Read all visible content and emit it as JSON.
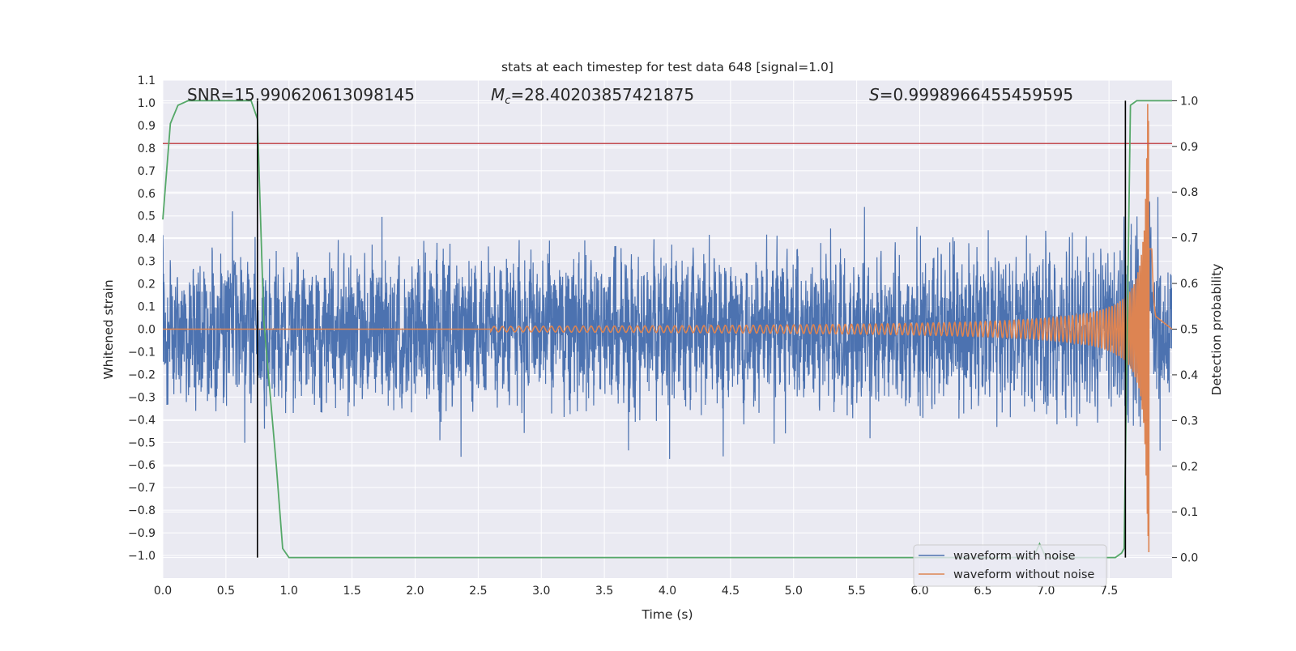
{
  "chart_data": {
    "type": "line",
    "title": "stats at each timestep for test data 648 [signal=1.0]",
    "xlabel": "Time (s)",
    "ylabel_left": "Whitened strain",
    "ylabel_right": "Detection probability",
    "xlim": [
      0.0,
      8.0
    ],
    "ylim_left": [
      -1.1,
      1.1
    ],
    "ylim_right": [
      -0.045,
      1.045
    ],
    "grid": true,
    "legend_position": "bottom-right",
    "x_ticks": [
      "0.0",
      "0.5",
      "1.0",
      "1.5",
      "2.0",
      "2.5",
      "3.0",
      "3.5",
      "4.0",
      "4.5",
      "5.0",
      "5.5",
      "6.0",
      "6.5",
      "7.0",
      "7.5"
    ],
    "x_tick_values": [
      0.0,
      0.5,
      1.0,
      1.5,
      2.0,
      2.5,
      3.0,
      3.5,
      4.0,
      4.5,
      5.0,
      5.5,
      6.0,
      6.5,
      7.0,
      7.5
    ],
    "y_left_ticks": [
      "1.1",
      "1.0",
      "0.9",
      "0.8",
      "0.7",
      "0.6",
      "0.5",
      "0.4",
      "0.3",
      "0.2",
      "0.1",
      "0.0",
      "−0.1",
      "−0.2",
      "−0.3",
      "−0.4",
      "−0.5",
      "−0.6",
      "−0.7",
      "−0.8",
      "−0.9",
      "−1.0"
    ],
    "y_left_tick_values": [
      1.1,
      1.0,
      0.9,
      0.8,
      0.7,
      0.6,
      0.5,
      0.4,
      0.3,
      0.2,
      0.1,
      0.0,
      -0.1,
      -0.2,
      -0.3,
      -0.4,
      -0.5,
      -0.6,
      -0.7,
      -0.8,
      -0.9,
      -1.0
    ],
    "y_right_ticks": [
      "1.0",
      "0.9",
      "0.8",
      "0.7",
      "0.6",
      "0.5",
      "0.4",
      "0.3",
      "0.2",
      "0.1",
      "0.0"
    ],
    "y_right_tick_values": [
      1.0,
      0.9,
      0.8,
      0.7,
      0.6,
      0.5,
      0.4,
      0.3,
      0.2,
      0.1,
      0.0
    ],
    "annotations": {
      "snr": "SNR=15.990620613098145",
      "mc_symbol": "M",
      "mc_subscript": "c",
      "mc_value": "=28.40203857421875",
      "s_symbol": "S",
      "s_value": "=0.9998966455459595"
    },
    "threshold_line": {
      "axis": "left",
      "y": 0.82,
      "color": "#c44e52"
    },
    "vertical_lines": [
      0.75,
      7.63
    ],
    "series": [
      {
        "name": "waveform with noise",
        "color": "#4c72b0",
        "axis": "left",
        "noise_envelope": 0.25,
        "peak_amplitude": 0.58,
        "merger_time": 7.82,
        "t_end": 8.0
      },
      {
        "name": "waveform without noise",
        "color": "#dd8452",
        "axis": "left",
        "merger_time": 7.82,
        "t_start": 2.6,
        "t_end": 7.87,
        "peak_amplitude": 1.0
      },
      {
        "name": "detection probability",
        "color": "#55a868",
        "axis": "right",
        "x": [
          0.0,
          0.06,
          0.12,
          0.2,
          0.3,
          0.4,
          0.5,
          0.6,
          0.7,
          0.75,
          0.8,
          0.9,
          0.95,
          1.0,
          2.0,
          3.0,
          4.0,
          5.0,
          6.0,
          6.9,
          6.95,
          7.0,
          7.5,
          7.55,
          7.6,
          7.62,
          7.67,
          7.72,
          7.8,
          8.0
        ],
        "y": [
          0.74,
          0.95,
          0.99,
          1.0,
          1.0,
          1.0,
          1.0,
          1.0,
          1.0,
          0.96,
          0.52,
          0.2,
          0.02,
          0.0,
          0.0,
          0.0,
          0.0,
          0.0,
          0.0,
          0.0,
          0.03,
          0.0,
          0.0,
          0.0,
          0.01,
          0.02,
          0.99,
          1.0,
          1.0,
          1.0
        ]
      }
    ],
    "legend": [
      "waveform with noise",
      "waveform without noise"
    ]
  }
}
